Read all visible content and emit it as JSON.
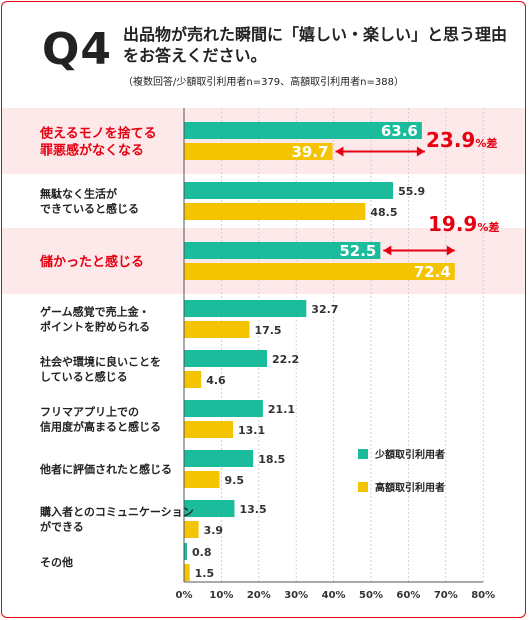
{
  "header": {
    "question_number": "Q4",
    "question_text": "出品物が売れた瞬間に「嬉しい・楽しい」と思う理由をお答えください。",
    "note": "（複数回答/少額取引利用者n=379、高額取引利用者n=388）"
  },
  "colors": {
    "small": "#1abc9c",
    "large": "#f5c400",
    "highlight_band": "#fde9ea",
    "accent_red": "#e60012"
  },
  "chart_data": {
    "type": "bar",
    "orientation": "horizontal",
    "categories": [
      [
        "使えるモノを捨てる",
        "罪悪感がなくなる"
      ],
      [
        "無駄なく生活が",
        "できていると感じる"
      ],
      [
        "儲かったと感じる"
      ],
      [
        "ゲーム感覚で売上金・",
        "ポイントを貯められる"
      ],
      [
        "社会や環境に良いことを",
        "していると感じる"
      ],
      [
        "フリマアプリ上での",
        "信用度が高まると感じる"
      ],
      [
        "他者に評価されたと感じる"
      ],
      [
        "購入者とのコミュニケーション",
        "ができる"
      ],
      [
        "その他"
      ]
    ],
    "highlighted": [
      true,
      false,
      true,
      false,
      false,
      false,
      false,
      false,
      false
    ],
    "series": [
      {
        "name": "少額取引利用者",
        "values": [
          63.6,
          55.9,
          52.5,
          32.7,
          22.2,
          21.1,
          18.5,
          13.5,
          0.8
        ]
      },
      {
        "name": "高額取引利用者",
        "values": [
          39.7,
          48.5,
          72.4,
          17.5,
          4.6,
          13.1,
          9.5,
          3.9,
          1.5
        ]
      }
    ],
    "x_ticks": [
      "0%",
      "10%",
      "20%",
      "30%",
      "40%",
      "50%",
      "60%",
      "70%",
      "80%"
    ],
    "xlim": [
      0,
      80
    ],
    "legend_position": "right",
    "annotations": [
      {
        "row": 0,
        "value": "23.9",
        "unit": "%差"
      },
      {
        "row": 2,
        "value": "19.9",
        "unit": "%差"
      }
    ]
  }
}
